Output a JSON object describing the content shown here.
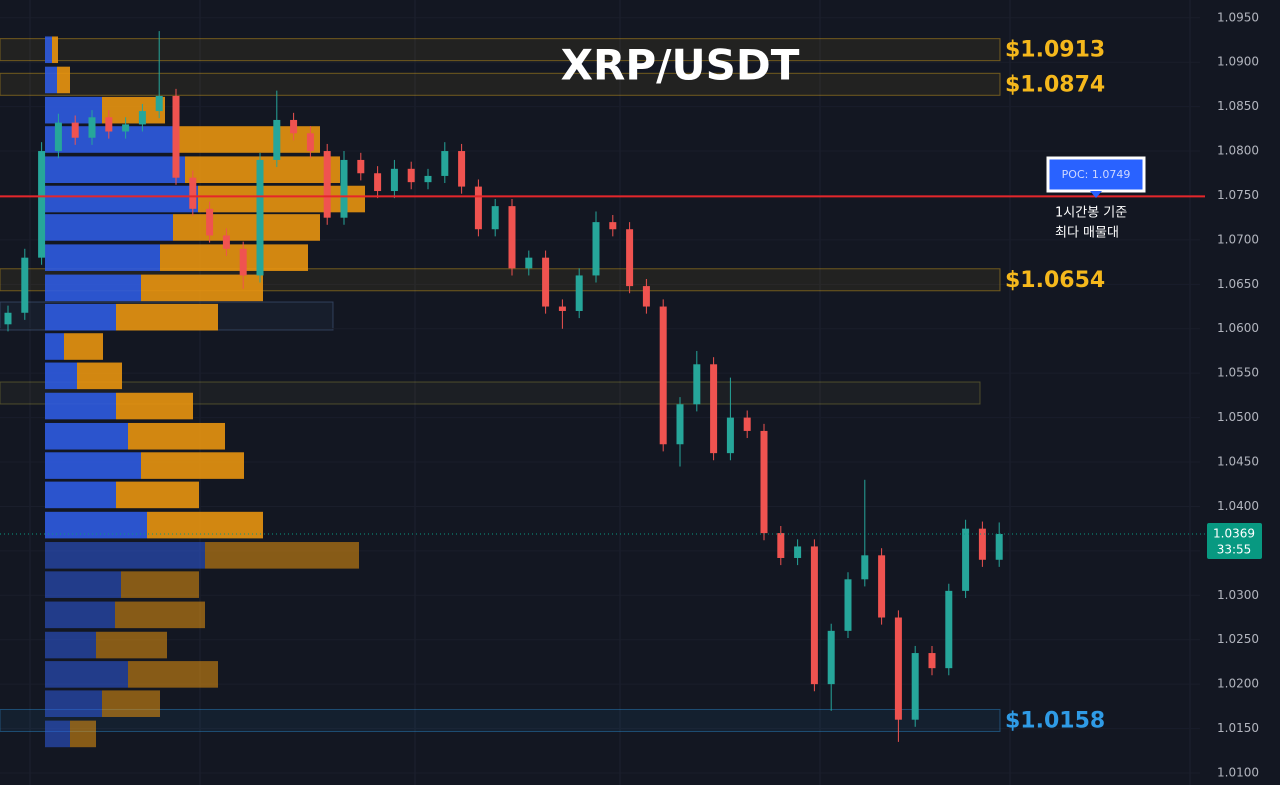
{
  "chart_data": {
    "type": "candlestick",
    "title": "XRP/USDT",
    "up_color": "#26a69a",
    "down_color": "#ef5350",
    "open": [
      1.0605,
      1.0618,
      1.068,
      1.08,
      1.0832,
      1.0815,
      1.0838,
      1.0822,
      1.083,
      1.0845,
      1.0862,
      1.077,
      1.0735,
      1.0705,
      1.069,
      1.066,
      1.079,
      1.0835,
      1.082,
      1.08,
      1.0725,
      1.079,
      1.0775,
      1.0755,
      1.078,
      1.0765,
      1.0772,
      1.08,
      1.076,
      1.0712,
      1.0738,
      1.0668,
      1.068,
      1.0625,
      1.062,
      1.066,
      1.072,
      1.0712,
      1.0648,
      1.0625,
      1.047,
      1.0515,
      1.056,
      1.046,
      1.05,
      1.0485,
      1.037,
      1.0342,
      1.0355,
      1.02,
      1.026,
      1.0318,
      1.0345,
      1.0275,
      1.016,
      1.0235,
      1.0218,
      1.0305,
      1.0375,
      1.034
    ],
    "high": [
      1.0626,
      1.069,
      1.081,
      1.0842,
      1.084,
      1.0846,
      1.0846,
      1.0838,
      1.0853,
      1.0935,
      1.087,
      1.0778,
      1.0743,
      1.0713,
      1.0698,
      1.0798,
      1.0868,
      1.0843,
      1.0828,
      1.0808,
      1.08,
      1.0798,
      1.0783,
      1.079,
      1.0788,
      1.078,
      1.081,
      1.0808,
      1.0768,
      1.0746,
      1.0746,
      1.0688,
      1.0688,
      1.0633,
      1.0668,
      1.0732,
      1.0728,
      1.072,
      1.0656,
      1.0633,
      1.0523,
      1.0575,
      1.0568,
      1.0545,
      1.0508,
      1.0493,
      1.0378,
      1.0363,
      1.0363,
      1.0268,
      1.0326,
      1.043,
      1.0353,
      1.0283,
      1.0243,
      1.0243,
      1.0313,
      1.0385,
      1.0383,
      1.0382
    ],
    "low": [
      1.0597,
      1.061,
      1.0672,
      1.0792,
      1.0807,
      1.0807,
      1.0814,
      1.0814,
      1.0822,
      1.0837,
      1.0762,
      1.0727,
      1.0697,
      1.0682,
      1.0645,
      1.0652,
      1.0782,
      1.0812,
      1.0792,
      1.0717,
      1.0717,
      1.0767,
      1.0747,
      1.0747,
      1.0757,
      1.0757,
      1.0764,
      1.0752,
      1.0704,
      1.0704,
      1.066,
      1.066,
      1.0617,
      1.06,
      1.0612,
      1.0652,
      1.0704,
      1.064,
      1.0617,
      1.0462,
      1.0445,
      1.0507,
      1.0452,
      1.0452,
      1.0477,
      1.0362,
      1.0334,
      1.0334,
      1.0192,
      1.017,
      1.0252,
      1.031,
      1.0267,
      1.0135,
      1.0152,
      1.021,
      1.021,
      1.0297,
      1.0332,
      1.0332
    ],
    "close": [
      1.0618,
      1.068,
      1.08,
      1.0832,
      1.0815,
      1.0838,
      1.0822,
      1.083,
      1.0845,
      1.0862,
      1.077,
      1.0735,
      1.0705,
      1.069,
      1.066,
      1.079,
      1.0835,
      1.082,
      1.08,
      1.0725,
      1.079,
      1.0775,
      1.0755,
      1.078,
      1.0765,
      1.0772,
      1.08,
      1.076,
      1.0712,
      1.0738,
      1.0668,
      1.068,
      1.0625,
      1.062,
      1.066,
      1.072,
      1.0712,
      1.0648,
      1.0625,
      1.047,
      1.0515,
      1.056,
      1.046,
      1.05,
      1.0485,
      1.037,
      1.0342,
      1.0355,
      1.02,
      1.026,
      1.0318,
      1.0345,
      1.0275,
      1.016,
      1.0235,
      1.0218,
      1.0305,
      1.0375,
      1.034,
      1.0369
    ],
    "ylim": [
      1.00865,
      1.097
    ],
    "yticks": [
      {
        "value": 1.095,
        "label": "1.0950"
      },
      {
        "value": 1.09,
        "label": "1.0900"
      },
      {
        "value": 1.085,
        "label": "1.0850"
      },
      {
        "value": 1.08,
        "label": "1.0800"
      },
      {
        "value": 1.075,
        "label": "1.0750"
      },
      {
        "value": 1.07,
        "label": "1.0700"
      },
      {
        "value": 1.065,
        "label": "1.0650"
      },
      {
        "value": 1.06,
        "label": "1.0600"
      },
      {
        "value": 1.055,
        "label": "1.0550"
      },
      {
        "value": 1.05,
        "label": "1.0500"
      },
      {
        "value": 1.045,
        "label": "1.0450"
      },
      {
        "value": 1.04,
        "label": "1.0400"
      },
      {
        "value": 1.035,
        "label": "1.0350"
      },
      {
        "value": 1.03,
        "label": "1.0300"
      },
      {
        "value": 1.025,
        "label": "1.0250"
      },
      {
        "value": 1.02,
        "label": "1.0200"
      },
      {
        "value": 1.015,
        "label": "1.0150"
      },
      {
        "value": 1.01,
        "label": "1.0100"
      }
    ],
    "grid": true,
    "current_price": 1.0369,
    "current_countdown": "33:55",
    "current_color": "#089981",
    "poc": {
      "value": 1.0749,
      "label": "POC: 1.0749",
      "note": [
        "1시간봉 기준",
        "최다 매물대"
      ],
      "color": "#e5262a"
    },
    "levels": [
      {
        "value": 1.0913,
        "label": "$1.0913",
        "color": "#f5b81c"
      },
      {
        "value": 1.0874,
        "label": "$1.0874",
        "color": "#f5b81c"
      },
      {
        "value": 1.0654,
        "label": "$1.0654",
        "color": "#f5b81c"
      },
      {
        "value": 1.0158,
        "label": "$1.0158",
        "color": "#2f9be6"
      }
    ],
    "volume_profile": {
      "prices": [
        1.0914,
        1.088,
        1.0846,
        1.0813,
        1.0779,
        1.0746,
        1.0714,
        1.068,
        1.0646,
        1.0613,
        1.058,
        1.0547,
        1.0513,
        1.0479,
        1.0446,
        1.0413,
        1.0379,
        1.0345,
        1.0312,
        1.0278,
        1.0244,
        1.0211,
        1.0178,
        1.0144
      ],
      "buy": [
        7,
        12,
        57,
        133,
        140,
        153,
        128,
        115,
        96,
        71,
        19,
        32,
        71,
        83,
        96,
        71,
        102,
        160,
        76,
        70,
        51,
        83,
        57,
        25
      ],
      "sell": [
        6,
        13,
        63,
        142,
        155,
        167,
        147,
        148,
        122,
        102,
        39,
        45,
        77,
        97,
        103,
        83,
        116,
        154,
        78,
        90,
        71,
        90,
        58,
        26
      ],
      "buy_color": "#2f5be0",
      "sell_color": "#e8940f"
    }
  }
}
